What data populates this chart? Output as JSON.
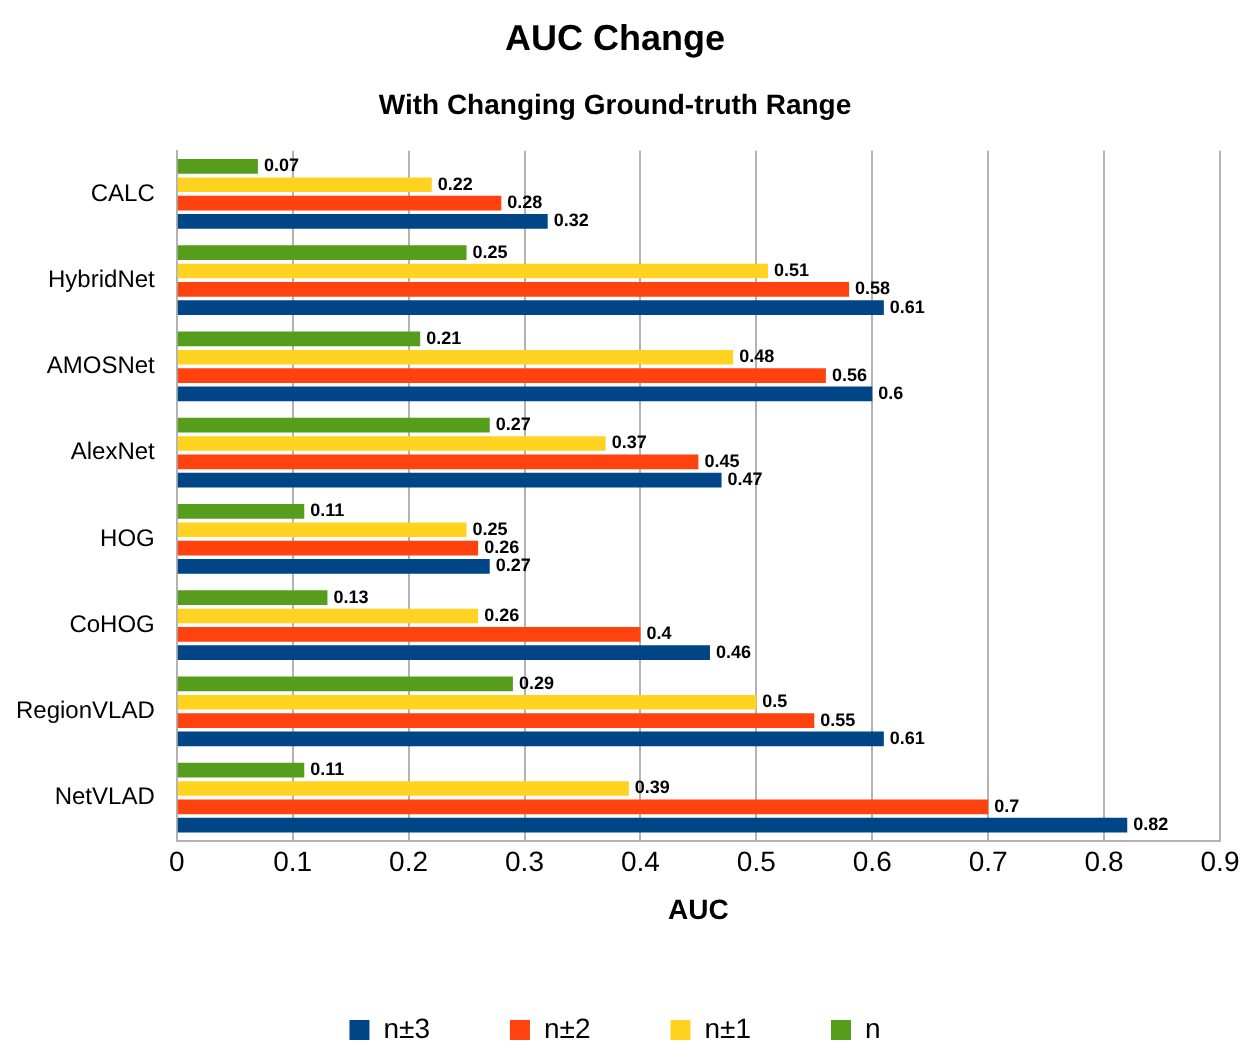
{
  "chart_data": {
    "type": "bar",
    "orientation": "horizontal",
    "title": "AUC Change",
    "subtitle": "With Changing Ground-truth Range",
    "xlabel": "AUC",
    "categories": [
      "CALC",
      "HybridNet",
      "AMOSNet",
      "AlexNet",
      "HOG",
      "CoHOG",
      "RegionVLAD",
      "NetVLAD"
    ],
    "series": [
      {
        "name": "n±3",
        "color": "#004586",
        "values": [
          0.32,
          0.61,
          0.6,
          0.47,
          0.27,
          0.46,
          0.61,
          0.82
        ]
      },
      {
        "name": "n±2",
        "color": "#ff420e",
        "values": [
          0.28,
          0.58,
          0.56,
          0.45,
          0.26,
          0.4,
          0.55,
          0.7
        ]
      },
      {
        "name": "n±1",
        "color": "#ffd320",
        "values": [
          0.22,
          0.51,
          0.48,
          0.37,
          0.25,
          0.26,
          0.5,
          0.39
        ]
      },
      {
        "name": "n",
        "color": "#579d1c",
        "values": [
          0.07,
          0.25,
          0.21,
          0.27,
          0.11,
          0.13,
          0.29,
          0.11
        ]
      }
    ],
    "xlim": [
      0,
      0.9
    ],
    "xticks": [
      0,
      0.1,
      0.2,
      0.3,
      0.4,
      0.5,
      0.6,
      0.7,
      0.8,
      0.9
    ],
    "grid": "x",
    "legend": "bottom",
    "data_labels": true
  }
}
